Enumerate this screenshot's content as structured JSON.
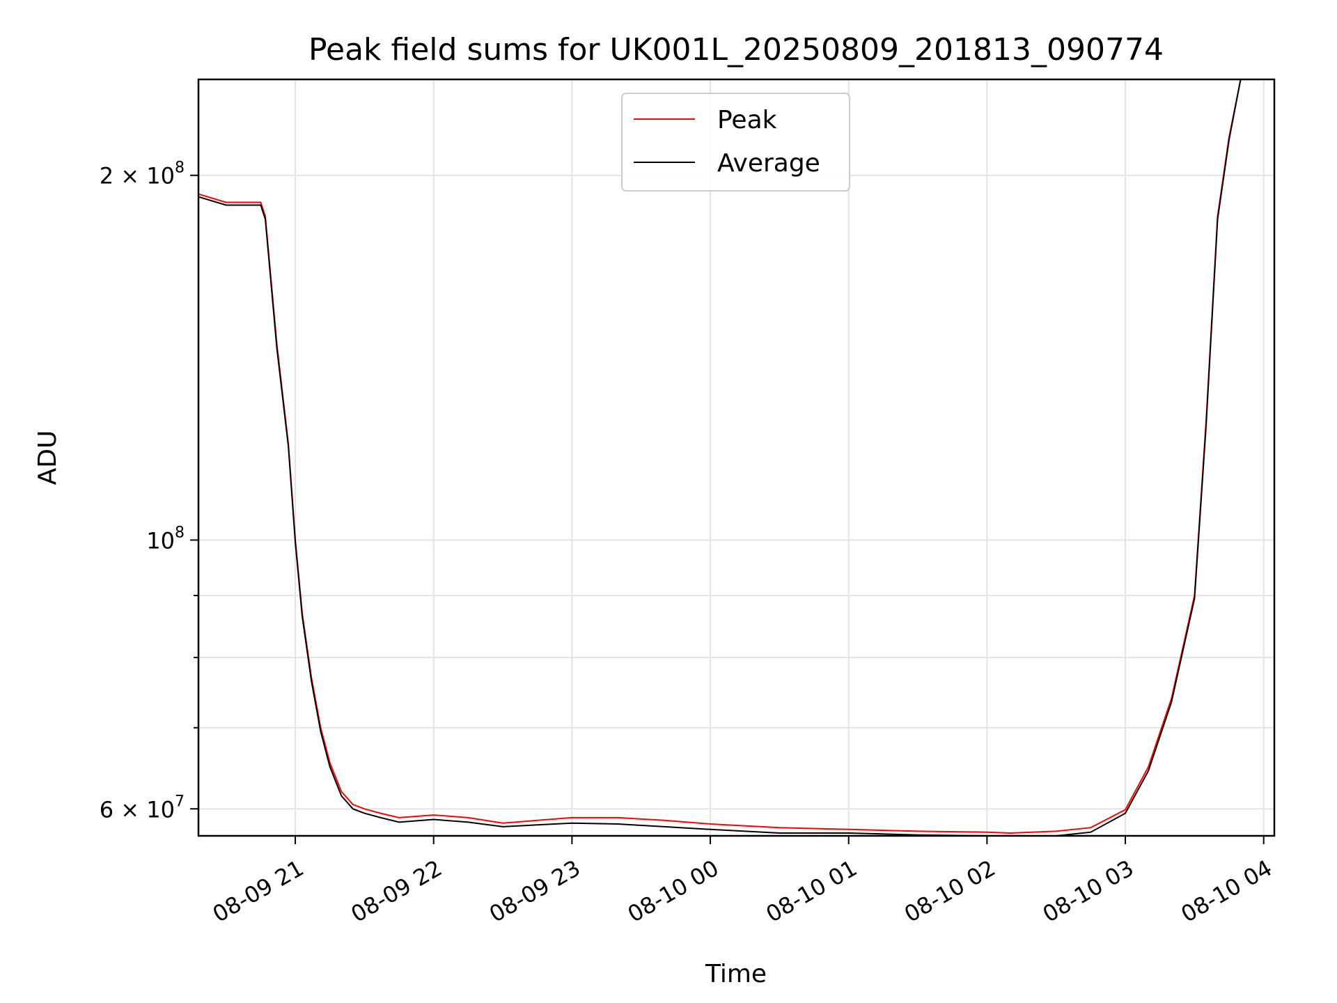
{
  "chart_data": {
    "type": "line",
    "title": "Peak field sums for UK001L_20250809_201813_090774",
    "xlabel": "Time",
    "ylabel": "ADU",
    "y_scale": "log",
    "grid": true,
    "legend_position": "top-center",
    "xlim": [
      "2025-08-09 20:18",
      "2025-08-10 04:00"
    ],
    "ylim": [
      57000000,
      240000000
    ],
    "x_ticks": [
      "08-09 21",
      "08-09 22",
      "08-09 23",
      "08-10 00",
      "08-10 01",
      "08-10 02",
      "08-10 03",
      "08-10 04"
    ],
    "y_major_ticks": [
      {
        "value": 60000000,
        "label": "6 × 10",
        "exp": "7"
      },
      {
        "value": 100000000,
        "label": "10",
        "exp": "8"
      },
      {
        "value": 200000000,
        "label": "2 × 10",
        "exp": "8"
      }
    ],
    "y_minor_ticks": [
      70000000,
      80000000,
      90000000
    ],
    "series": [
      {
        "name": "Peak",
        "color": "#ff0000",
        "x": [
          "2025-08-09 20:18",
          "2025-08-09 20:30",
          "2025-08-09 20:45",
          "2025-08-09 20:47",
          "2025-08-09 20:52",
          "2025-08-09 20:57",
          "2025-08-09 21:00",
          "2025-08-09 21:03",
          "2025-08-09 21:07",
          "2025-08-09 21:11",
          "2025-08-09 21:15",
          "2025-08-09 21:20",
          "2025-08-09 21:25",
          "2025-08-09 21:30",
          "2025-08-09 21:37",
          "2025-08-09 21:45",
          "2025-08-09 22:00",
          "2025-08-09 22:15",
          "2025-08-09 22:30",
          "2025-08-09 22:45",
          "2025-08-09 23:00",
          "2025-08-09 23:20",
          "2025-08-09 23:40",
          "2025-08-10 00:00",
          "2025-08-10 00:30",
          "2025-08-10 01:00",
          "2025-08-10 01:30",
          "2025-08-10 02:00",
          "2025-08-10 02:10",
          "2025-08-10 02:30",
          "2025-08-10 02:45",
          "2025-08-10 03:00",
          "2025-08-10 03:10",
          "2025-08-10 03:20",
          "2025-08-10 03:30",
          "2025-08-10 03:35",
          "2025-08-10 03:40",
          "2025-08-10 03:45",
          "2025-08-10 03:50",
          "2025-08-10 03:55"
        ],
        "y": [
          193000000,
          190000000,
          190000000,
          185000000,
          145000000,
          120000000,
          100000000,
          87000000,
          77000000,
          70000000,
          65500000,
          62000000,
          60500000,
          60000000,
          59500000,
          59000000,
          59300000,
          59000000,
          58400000,
          58700000,
          59000000,
          59000000,
          58700000,
          58300000,
          57900000,
          57700000,
          57500000,
          57400000,
          57300000,
          57500000,
          57900000,
          59900000,
          65000000,
          74000000,
          90000000,
          125000000,
          185000000,
          215000000,
          240000000,
          240000000
        ]
      },
      {
        "name": "Average",
        "color": "#000000",
        "x": [
          "2025-08-09 20:18",
          "2025-08-09 20:30",
          "2025-08-09 20:45",
          "2025-08-09 20:47",
          "2025-08-09 20:52",
          "2025-08-09 20:57",
          "2025-08-09 21:00",
          "2025-08-09 21:03",
          "2025-08-09 21:07",
          "2025-08-09 21:11",
          "2025-08-09 21:15",
          "2025-08-09 21:20",
          "2025-08-09 21:25",
          "2025-08-09 21:30",
          "2025-08-09 21:37",
          "2025-08-09 21:45",
          "2025-08-09 22:00",
          "2025-08-09 22:15",
          "2025-08-09 22:30",
          "2025-08-09 22:45",
          "2025-08-09 23:00",
          "2025-08-09 23:20",
          "2025-08-09 23:40",
          "2025-08-10 00:00",
          "2025-08-10 00:30",
          "2025-08-10 01:00",
          "2025-08-10 01:30",
          "2025-08-10 02:00",
          "2025-08-10 02:10",
          "2025-08-10 02:30",
          "2025-08-10 02:45",
          "2025-08-10 03:00",
          "2025-08-10 03:10",
          "2025-08-10 03:20",
          "2025-08-10 03:30",
          "2025-08-10 03:35",
          "2025-08-10 03:40",
          "2025-08-10 03:45",
          "2025-08-10 03:50",
          "2025-08-10 03:55"
        ],
        "y": [
          192000000,
          189000000,
          189000000,
          184000000,
          144000000,
          119500000,
          99500000,
          86500000,
          76500000,
          69500000,
          65000000,
          61500000,
          60000000,
          59500000,
          59000000,
          58500000,
          58800000,
          58500000,
          58000000,
          58200000,
          58400000,
          58300000,
          58000000,
          57700000,
          57300000,
          57300000,
          57100000,
          57000000,
          56900000,
          57000000,
          57400000,
          59500000,
          64500000,
          73500000,
          89500000,
          124000000,
          184000000,
          214000000,
          240000000,
          240000000
        ]
      }
    ]
  }
}
